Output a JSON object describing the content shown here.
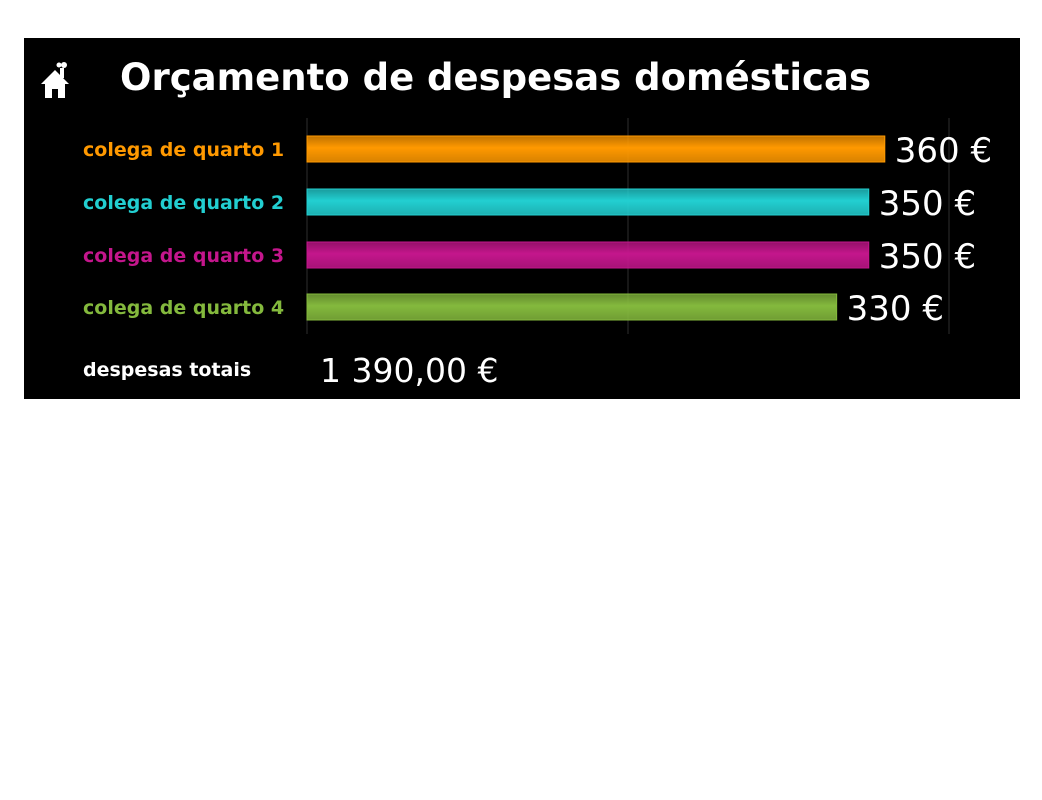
{
  "header": {
    "title": "Orçamento de despesas domésticas",
    "icon": "house-icon"
  },
  "chart_data": {
    "type": "bar",
    "orientation": "horizontal",
    "categories": [
      "colega de quarto 1",
      "colega de quarto 2",
      "colega de quarto 3",
      "colega de quarto 4"
    ],
    "values": [
      360,
      350,
      350,
      330
    ],
    "value_labels": [
      "360 €",
      "350 €",
      "350 €",
      "330 €"
    ],
    "colors": [
      "#ff9900",
      "#22cfd1",
      "#c4168c",
      "#84b93d"
    ],
    "xlim": [
      0,
      400
    ],
    "grid": true
  },
  "summary": {
    "total_label": "despesas totais",
    "total_value": "1 390,00 €"
  }
}
